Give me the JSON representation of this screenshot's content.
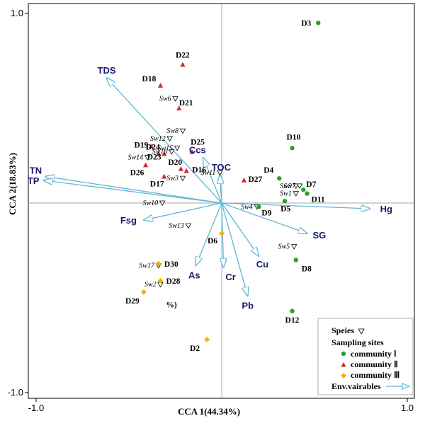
{
  "chart_data": {
    "type": "scatter",
    "xlabel": "CCA 1(44.34%)",
    "ylabel": "CCA 2(18.83%)",
    "xlim": [
      -1.0,
      1.0
    ],
    "ylim": [
      -1.0,
      1.0
    ],
    "x_ticks": [
      -1.0,
      1.0
    ],
    "y_ticks": [
      1.0,
      -1.0
    ],
    "x_tick_labels": [
      "-1.0",
      "1.0"
    ],
    "y_tick_labels": [
      "1.0",
      "-1.0"
    ],
    "grid": false,
    "zero_lines": true,
    "legend_position": "bottom-right",
    "stray_text": {
      "text": "%)",
      "x": -0.3,
      "y": -0.55
    },
    "colors": {
      "community1": "#2ca02c",
      "community2": "#d62728",
      "community3": "#f5b400",
      "arrow": "#5fb7d6",
      "env_label": "#1a1a6e"
    },
    "sites": [
      {
        "label": "D3",
        "group": 1,
        "x": 0.52,
        "y": 0.95
      },
      {
        "label": "D10",
        "group": 1,
        "x": 0.38,
        "y": 0.29
      },
      {
        "label": "D4",
        "group": 1,
        "x": 0.31,
        "y": 0.13
      },
      {
        "label": "D7",
        "group": 1,
        "x": 0.44,
        "y": 0.07
      },
      {
        "label": "D11",
        "group": 1,
        "x": 0.46,
        "y": 0.05
      },
      {
        "label": "D5",
        "group": 1,
        "x": 0.34,
        "y": 0.01
      },
      {
        "label": "D9",
        "group": 1,
        "x": 0.2,
        "y": -0.02
      },
      {
        "label": "D8",
        "group": 1,
        "x": 0.4,
        "y": -0.3
      },
      {
        "label": "D12",
        "group": 1,
        "x": 0.38,
        "y": -0.57
      },
      {
        "label": "D22",
        "group": 2,
        "x": -0.21,
        "y": 0.73
      },
      {
        "label": "D18",
        "group": 2,
        "x": -0.33,
        "y": 0.62
      },
      {
        "label": "D21",
        "group": 2,
        "x": -0.23,
        "y": 0.5
      },
      {
        "label": "D19",
        "group": 2,
        "x": -0.38,
        "y": 0.3
      },
      {
        "label": "D24",
        "group": 2,
        "x": -0.34,
        "y": 0.26
      },
      {
        "label": "D23",
        "group": 2,
        "x": -0.31,
        "y": 0.26
      },
      {
        "label": "D25",
        "group": 2,
        "x": -0.16,
        "y": 0.27
      },
      {
        "label": "D26",
        "group": 2,
        "x": -0.41,
        "y": 0.2
      },
      {
        "label": "D20",
        "group": 2,
        "x": -0.22,
        "y": 0.18
      },
      {
        "label": "D16",
        "group": 2,
        "x": -0.19,
        "y": 0.17
      },
      {
        "label": "D17",
        "group": 2,
        "x": -0.31,
        "y": 0.14
      },
      {
        "label": "D27",
        "group": 2,
        "x": 0.12,
        "y": 0.12
      },
      {
        "label": "D6",
        "group": 3,
        "x": 0.0,
        "y": -0.16
      },
      {
        "label": "D30",
        "group": 3,
        "x": -0.34,
        "y": -0.32
      },
      {
        "label": "D28",
        "group": 3,
        "x": -0.33,
        "y": -0.41
      },
      {
        "label": "D29",
        "group": 3,
        "x": -0.42,
        "y": -0.47
      },
      {
        "label": "D2",
        "group": 3,
        "x": -0.08,
        "y": -0.72
      }
    ],
    "species": [
      {
        "label": "Sw6",
        "x": -0.25,
        "y": 0.55
      },
      {
        "label": "Sw8",
        "x": -0.21,
        "y": 0.38
      },
      {
        "label": "Sw12",
        "x": -0.28,
        "y": 0.34
      },
      {
        "label": "Sw15",
        "x": -0.24,
        "y": 0.29
      },
      {
        "label": "Sw16",
        "x": -0.27,
        "y": 0.27
      },
      {
        "label": "Sw14",
        "x": -0.4,
        "y": 0.24
      },
      {
        "label": "Sw3",
        "x": -0.21,
        "y": 0.13
      },
      {
        "label": "Sw11",
        "x": -0.01,
        "y": 0.16
      },
      {
        "label": "Sw9",
        "x": 0.4,
        "y": 0.09
      },
      {
        "label": "Sw7",
        "x": 0.42,
        "y": 0.09
      },
      {
        "label": "Sw1",
        "x": 0.4,
        "y": 0.05
      },
      {
        "label": "Sw4",
        "x": 0.19,
        "y": -0.02
      },
      {
        "label": "Sw10",
        "x": -0.32,
        "y": 0.0
      },
      {
        "label": "Sw13",
        "x": -0.18,
        "y": -0.12
      },
      {
        "label": "Sw5",
        "x": 0.39,
        "y": -0.23
      },
      {
        "label": "Sw17",
        "x": -0.34,
        "y": -0.33
      },
      {
        "label": "Sw2",
        "x": -0.33,
        "y": -0.43
      }
    ],
    "env_vectors": [
      {
        "label": "TDS",
        "x": -0.62,
        "y": 0.66
      },
      {
        "label": "TN",
        "x": -0.95,
        "y": 0.14
      },
      {
        "label": "TP",
        "x": -0.96,
        "y": 0.12
      },
      {
        "label": "Hg",
        "x": 0.8,
        "y": -0.03
      },
      {
        "label": "Fsg",
        "x": -0.42,
        "y": -0.09
      },
      {
        "label": "SG",
        "x": 0.46,
        "y": -0.16
      },
      {
        "label": "Ccs",
        "x": -0.1,
        "y": 0.24
      },
      {
        "label": "TOC",
        "x": -0.01,
        "y": 0.15
      },
      {
        "label": "As",
        "x": -0.14,
        "y": -0.33
      },
      {
        "label": "Cr",
        "x": 0.01,
        "y": -0.34
      },
      {
        "label": "Cu",
        "x": 0.2,
        "y": -0.28
      },
      {
        "label": "Pb",
        "x": 0.14,
        "y": -0.49
      }
    ]
  },
  "legend": {
    "species": "Speies",
    "sampling_sites": "Sampling sites",
    "community1": "community  Ⅰ",
    "community2": "community  Ⅱ",
    "community3": "community  Ⅲ",
    "env": "Env.vairables"
  }
}
